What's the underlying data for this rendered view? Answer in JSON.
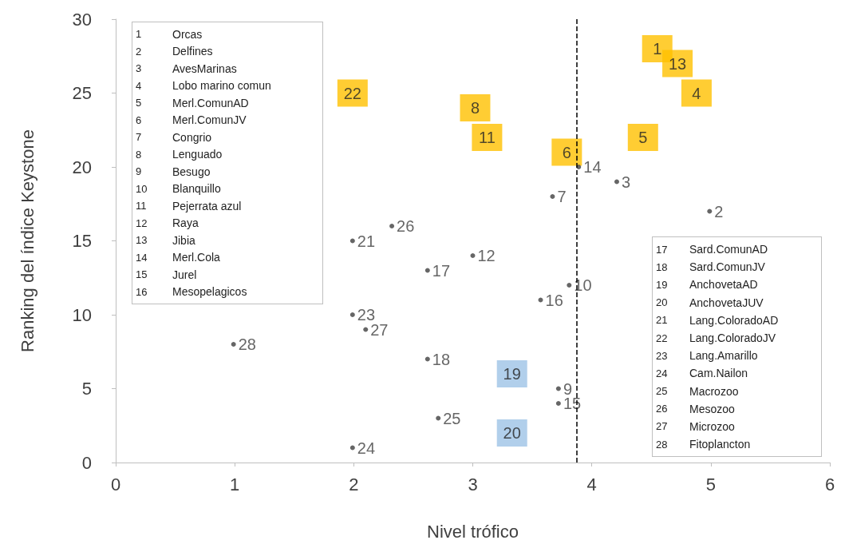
{
  "chart_data": {
    "type": "scatter",
    "xlabel": "Nivel trófico",
    "ylabel": "Ranking del índice Keystone",
    "xlim": [
      0,
      6
    ],
    "xticks": [
      0,
      1,
      2,
      3,
      4,
      5,
      6
    ],
    "ylim": [
      0,
      30
    ],
    "yticks": [
      0,
      5,
      10,
      15,
      20,
      25,
      30
    ],
    "grid": false,
    "series": [
      {
        "name": "1",
        "color": "#ffc000",
        "marker": "square",
        "x": [
          4.55
        ],
        "values": [
          28
        ]
      },
      {
        "name": "13",
        "color": "#ffc000",
        "marker": "square",
        "x": [
          4.72
        ],
        "values": [
          27
        ]
      },
      {
        "name": "4",
        "color": "#ffc000",
        "marker": "square",
        "x": [
          4.88
        ],
        "values": [
          25
        ]
      },
      {
        "name": "22",
        "color": "#ffc000",
        "marker": "square",
        "x": [
          1.99
        ],
        "values": [
          25
        ]
      },
      {
        "name": "8",
        "color": "#ffc000",
        "marker": "square",
        "x": [
          3.02
        ],
        "values": [
          24
        ]
      },
      {
        "name": "11",
        "color": "#ffc000",
        "marker": "square",
        "x": [
          3.12
        ],
        "values": [
          22
        ]
      },
      {
        "name": "5",
        "color": "#ffc000",
        "marker": "square",
        "x": [
          4.43
        ],
        "values": [
          22
        ]
      },
      {
        "name": "6",
        "color": "#ffc000",
        "marker": "square",
        "x": [
          3.79
        ],
        "values": [
          21
        ]
      },
      {
        "name": "19",
        "color": "#9dc3e6",
        "marker": "square",
        "x": [
          3.33
        ],
        "values": [
          6
        ]
      },
      {
        "name": "20",
        "color": "#9dc3e6",
        "marker": "square",
        "x": [
          3.33
        ],
        "values": [
          2
        ]
      },
      {
        "name": "14",
        "color": "#404040",
        "marker": "circle",
        "x": [
          3.89
        ],
        "values": [
          20
        ]
      },
      {
        "name": "3",
        "color": "#404040",
        "marker": "circle",
        "x": [
          4.21
        ],
        "values": [
          19
        ]
      },
      {
        "name": "7",
        "color": "#404040",
        "marker": "circle",
        "x": [
          3.67
        ],
        "values": [
          18
        ]
      },
      {
        "name": "2",
        "color": "#404040",
        "marker": "circle",
        "x": [
          4.99
        ],
        "values": [
          17
        ]
      },
      {
        "name": "26",
        "color": "#404040",
        "marker": "circle",
        "x": [
          2.32
        ],
        "values": [
          16
        ]
      },
      {
        "name": "21",
        "color": "#404040",
        "marker": "circle",
        "x": [
          1.99
        ],
        "values": [
          15
        ]
      },
      {
        "name": "12",
        "color": "#404040",
        "marker": "circle",
        "x": [
          3.0
        ],
        "values": [
          14
        ]
      },
      {
        "name": "17",
        "color": "#404040",
        "marker": "circle",
        "x": [
          2.62
        ],
        "values": [
          13
        ]
      },
      {
        "name": "10",
        "color": "#404040",
        "marker": "circle",
        "x": [
          3.81
        ],
        "values": [
          12
        ]
      },
      {
        "name": "16",
        "color": "#404040",
        "marker": "circle",
        "x": [
          3.57
        ],
        "values": [
          11
        ]
      },
      {
        "name": "23",
        "color": "#404040",
        "marker": "circle",
        "x": [
          1.99
        ],
        "values": [
          10
        ]
      },
      {
        "name": "27",
        "color": "#404040",
        "marker": "circle",
        "x": [
          2.1
        ],
        "values": [
          9
        ]
      },
      {
        "name": "28",
        "color": "#404040",
        "marker": "circle",
        "x": [
          0.99
        ],
        "values": [
          8
        ]
      },
      {
        "name": "18",
        "color": "#404040",
        "marker": "circle",
        "x": [
          2.62
        ],
        "values": [
          7
        ]
      },
      {
        "name": "9",
        "color": "#404040",
        "marker": "circle",
        "x": [
          3.72
        ],
        "values": [
          5
        ]
      },
      {
        "name": "15",
        "color": "#404040",
        "marker": "circle",
        "x": [
          3.72
        ],
        "values": [
          4
        ]
      },
      {
        "name": "25",
        "color": "#404040",
        "marker": "circle",
        "x": [
          2.71
        ],
        "values": [
          3
        ]
      },
      {
        "name": "24",
        "color": "#404040",
        "marker": "circle",
        "x": [
          1.99
        ],
        "values": [
          1
        ]
      }
    ],
    "ref_lines": [
      {
        "axis": "x",
        "value": 3.87,
        "color": "#000000",
        "line_style": "dashed"
      }
    ],
    "annotations": [
      "1 Orcas",
      "2 Delfines",
      "3 AvesMarinas",
      "4 Lobo marino comun",
      "5 Merl.ComunAD",
      "6 Merl.ComunJV",
      "7 Congrio",
      "8 Lenguado",
      "9 Besugo",
      "10 Blanquillo",
      "11 Pejerrata azul",
      "12 Raya",
      "13 Jibia",
      "14 Merl.Cola",
      "15 Jurel",
      "16 Mesopelagicos",
      "17 Sard.ComunAD",
      "18 Sard.ComunJV",
      "19 AnchovetaAD",
      "20 AnchovetaJUV",
      "21 Lang.ColoradoAD",
      "22 Lang.ColoradoJV",
      "23 Lang.Amarillo",
      "24 Cam.Nailon",
      "25 Macrozoo",
      "26 Mesozoo",
      "27 Microzoo",
      "28 Fitoplancton"
    ]
  }
}
